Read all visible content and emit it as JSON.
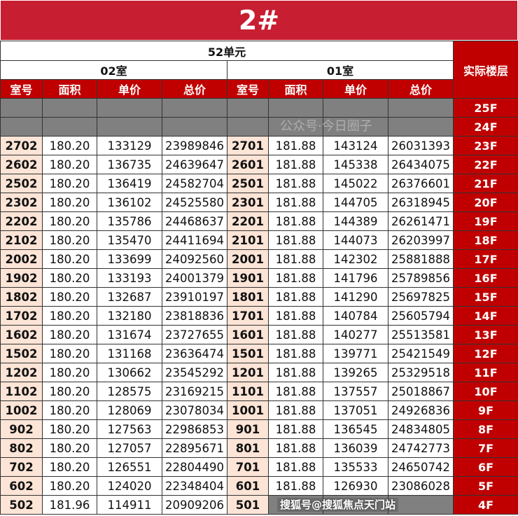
{
  "title": "2#",
  "unit": "52单元",
  "rooms": [
    "02室",
    "01室"
  ],
  "floor_header": "实际楼层",
  "columns": [
    "室号",
    "面积",
    "单价",
    "总价",
    "室号",
    "面积",
    "单价",
    "总价"
  ],
  "colors": {
    "title_bg": "#c81e32",
    "header_bg": "#c00000",
    "unavailable": "#808080",
    "room_no_bg": "#fce4d6"
  },
  "rows": [
    {
      "floor": "25F",
      "left": null,
      "right": null
    },
    {
      "floor": "24F",
      "left": null,
      "right": null
    },
    {
      "floor": "23F",
      "left": [
        "2702",
        "180.20",
        "133129",
        "23989846"
      ],
      "right": [
        "2701",
        "181.88",
        "143124",
        "26031393"
      ]
    },
    {
      "floor": "22F",
      "left": [
        "2602",
        "180.20",
        "136735",
        "24639647"
      ],
      "right": [
        "2601",
        "181.88",
        "145338",
        "26434075"
      ]
    },
    {
      "floor": "21F",
      "left": [
        "2502",
        "180.20",
        "136419",
        "24582704"
      ],
      "right": [
        "2501",
        "181.88",
        "145022",
        "26376601"
      ]
    },
    {
      "floor": "20F",
      "left": [
        "2302",
        "180.20",
        "136102",
        "24525580"
      ],
      "right": [
        "2301",
        "181.88",
        "144705",
        "26318945"
      ]
    },
    {
      "floor": "19F",
      "left": [
        "2202",
        "180.20",
        "135786",
        "24468637"
      ],
      "right": [
        "2201",
        "181.88",
        "144389",
        "26261471"
      ]
    },
    {
      "floor": "18F",
      "left": [
        "2102",
        "180.20",
        "135470",
        "24411694"
      ],
      "right": [
        "2101",
        "181.88",
        "144073",
        "26203997"
      ]
    },
    {
      "floor": "17F",
      "left": [
        "2002",
        "180.20",
        "133699",
        "24092560"
      ],
      "right": [
        "2001",
        "181.88",
        "142302",
        "25881888"
      ]
    },
    {
      "floor": "16F",
      "left": [
        "1902",
        "180.20",
        "133193",
        "24001379"
      ],
      "right": [
        "1901",
        "181.88",
        "141796",
        "25789856"
      ]
    },
    {
      "floor": "15F",
      "left": [
        "1802",
        "180.20",
        "132687",
        "23910197"
      ],
      "right": [
        "1801",
        "181.88",
        "141290",
        "25697825"
      ]
    },
    {
      "floor": "14F",
      "left": [
        "1702",
        "180.20",
        "132180",
        "23818836"
      ],
      "right": [
        "1701",
        "181.88",
        "140784",
        "25605794"
      ]
    },
    {
      "floor": "13F",
      "left": [
        "1602",
        "180.20",
        "131674",
        "23727655"
      ],
      "right": [
        "1601",
        "181.88",
        "140277",
        "25513581"
      ]
    },
    {
      "floor": "12F",
      "left": [
        "1502",
        "180.20",
        "131168",
        "23636474"
      ],
      "right": [
        "1501",
        "181.88",
        "139771",
        "25421549"
      ]
    },
    {
      "floor": "11F",
      "left": [
        "1202",
        "180.20",
        "130662",
        "23545292"
      ],
      "right": [
        "1201",
        "181.88",
        "139265",
        "25329518"
      ]
    },
    {
      "floor": "10F",
      "left": [
        "1102",
        "180.20",
        "128575",
        "23169215"
      ],
      "right": [
        "1101",
        "181.88",
        "137557",
        "25018867"
      ]
    },
    {
      "floor": "9F",
      "left": [
        "1002",
        "180.20",
        "128069",
        "23078034"
      ],
      "right": [
        "1001",
        "181.88",
        "137051",
        "24926836"
      ]
    },
    {
      "floor": "8F",
      "left": [
        "902",
        "180.20",
        "127563",
        "22986853"
      ],
      "right": [
        "901",
        "181.88",
        "136545",
        "24834805"
      ]
    },
    {
      "floor": "7F",
      "left": [
        "802",
        "180.20",
        "127057",
        "22895671"
      ],
      "right": [
        "801",
        "181.88",
        "136039",
        "24742773"
      ]
    },
    {
      "floor": "6F",
      "left": [
        "702",
        "180.20",
        "126551",
        "22804490"
      ],
      "right": [
        "701",
        "181.88",
        "135533",
        "24650742"
      ]
    },
    {
      "floor": "5F",
      "left": [
        "602",
        "180.20",
        "124020",
        "22348404"
      ],
      "right": [
        "601",
        "181.88",
        "126930",
        "23086028"
      ]
    },
    {
      "floor": "4F",
      "left": [
        "502",
        "181.96",
        "114911",
        "20909206"
      ],
      "right": [
        "501",
        null,
        null,
        null
      ]
    }
  ],
  "watermark": "搜狐号@搜狐焦点天门站",
  "watermark2": "公众号·今日圈子"
}
